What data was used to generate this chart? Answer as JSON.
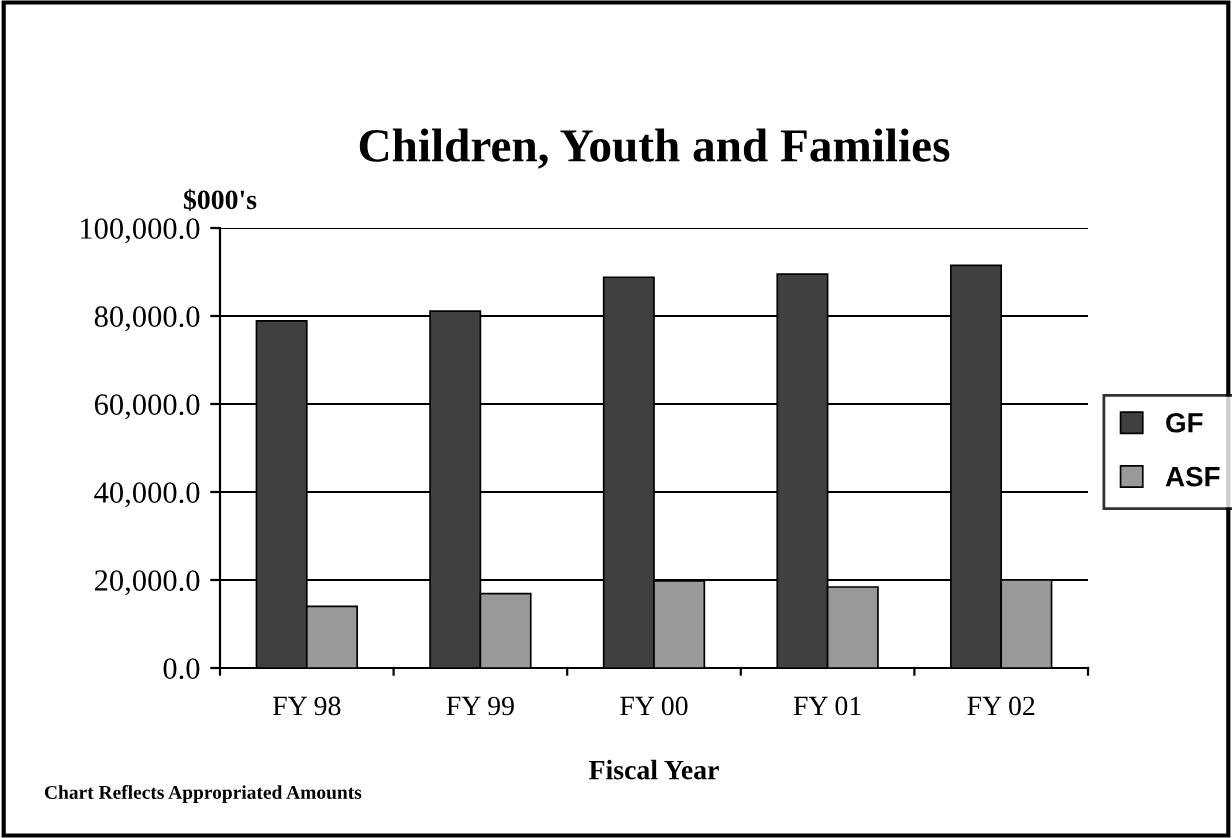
{
  "chart_data": {
    "type": "bar",
    "title": "Children, Youth and Families",
    "ylabel": "$000's",
    "xlabel": "Fiscal Year",
    "categories": [
      "FY 98",
      "FY 99",
      "FY 00",
      "FY 01",
      "FY 02"
    ],
    "series": [
      {
        "name": "GF",
        "color": "#404040",
        "values": [
          78900,
          81100,
          88800,
          89500,
          91500
        ]
      },
      {
        "name": "ASF",
        "color": "#999999",
        "values": [
          14000,
          16900,
          19800,
          18400,
          20000
        ]
      }
    ],
    "ylim": [
      0,
      100000
    ],
    "yticks": [
      {
        "value": 0,
        "label": "0.0"
      },
      {
        "value": 20000,
        "label": "20,000.0"
      },
      {
        "value": 40000,
        "label": "40,000.0"
      },
      {
        "value": 60000,
        "label": "60,000.0"
      },
      {
        "value": 80000,
        "label": "80,000.0"
      },
      {
        "value": 100000,
        "label": "100,000.0"
      }
    ],
    "grid": "y",
    "legend": "right",
    "annotations": [
      "Chart Reflects Appropriated Amounts"
    ]
  }
}
